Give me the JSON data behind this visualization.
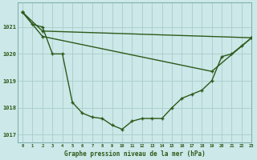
{
  "title": "Graphe pression niveau de la mer (hPa)",
  "background_color": "#cce8e8",
  "grid_color": "#aacccc",
  "line_color": "#2d5a1b",
  "xlim": [
    -0.5,
    23
  ],
  "ylim": [
    1016.7,
    1021.9
  ],
  "yticks": [
    1017,
    1018,
    1019,
    1020,
    1021
  ],
  "xticks": [
    0,
    1,
    2,
    3,
    4,
    5,
    6,
    7,
    8,
    9,
    10,
    11,
    12,
    13,
    14,
    15,
    16,
    17,
    18,
    19,
    20,
    21,
    22,
    23
  ],
  "series1_x": [
    0,
    1,
    2,
    3,
    4,
    5,
    6,
    7,
    8,
    9,
    10,
    11,
    12,
    13,
    14,
    15,
    16,
    17,
    18,
    19,
    20,
    21,
    22,
    23
  ],
  "series1_y": [
    1021.55,
    1021.1,
    1021.0,
    1020.0,
    1020.0,
    1018.2,
    1017.8,
    1017.65,
    1017.6,
    1017.35,
    1017.2,
    1017.5,
    1017.6,
    1017.6,
    1017.6,
    1018.0,
    1018.35,
    1018.5,
    1018.65,
    1019.0,
    1019.9,
    1020.0,
    1020.3,
    1020.6
  ],
  "series2_x": [
    0,
    2,
    23
  ],
  "series2_y": [
    1021.55,
    1020.85,
    1020.6
  ],
  "series3_x": [
    0,
    2,
    19,
    23
  ],
  "series3_y": [
    1021.55,
    1020.65,
    1019.35,
    1020.6
  ]
}
